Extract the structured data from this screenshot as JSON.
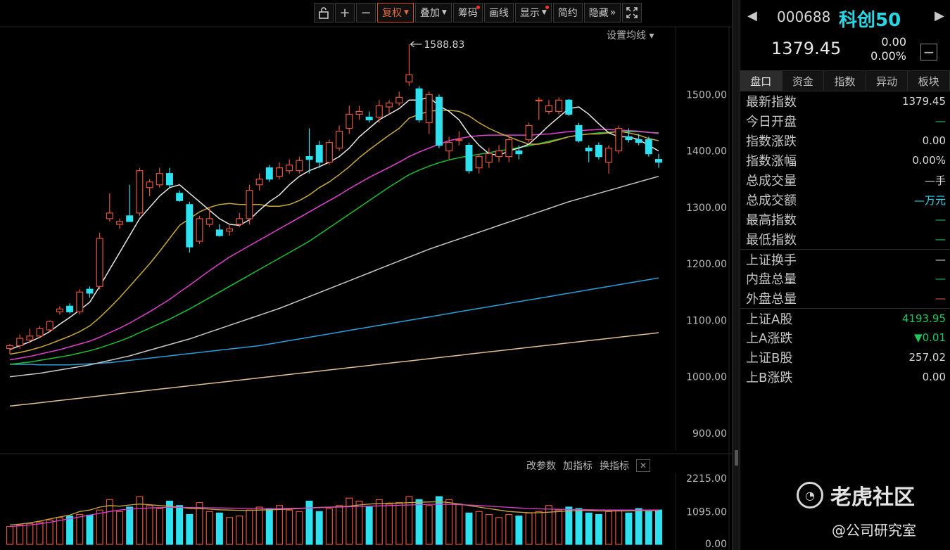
{
  "toolbar": {
    "lock_icon": "lock-icon",
    "zoom_in": "+",
    "zoom_out": "−",
    "items": [
      {
        "label": "复权",
        "dropdown": true,
        "dot": false,
        "active": true
      },
      {
        "label": "叠加",
        "dropdown": true,
        "dot": false,
        "active": false
      },
      {
        "label": "筹码",
        "dropdown": false,
        "dot": true,
        "active": false
      },
      {
        "label": "画线",
        "dropdown": false,
        "dot": false,
        "active": false
      },
      {
        "label": "显示",
        "dropdown": true,
        "dot": true,
        "active": false
      },
      {
        "label": "简约",
        "dropdown": false,
        "dot": false,
        "active": false
      },
      {
        "label": "隐藏",
        "dropdown": false,
        "dot": false,
        "active": false,
        "suffix": "»"
      }
    ],
    "fullscreen_icon": "fullscreen-icon"
  },
  "ma_setting_label": "设置均线 ▾",
  "price_axis": [
    "1500.00",
    "1400.00",
    "1300.00",
    "1200.00",
    "1100.00",
    "1000.00",
    "900.00"
  ],
  "volume_axis": [
    "2215.00",
    "1095.00",
    "0.00"
  ],
  "indicator_controls": [
    "改参数",
    "加指标",
    "换指标"
  ],
  "chart_data": {
    "type": "candlestick",
    "peak_label": "1588.83",
    "y_range": [
      870,
      1620
    ],
    "colors": {
      "up": "#e0553a",
      "down": "#2fe0ef",
      "ma5": "#e8e8e8",
      "ma10": "#c8a83c",
      "ma20": "#e040d0",
      "ma30": "#18c030",
      "ma60": "#c8c8c8",
      "ma120": "#2a9ed8",
      "ma250": "#e0c090"
    },
    "candles": [
      {
        "o": 1050,
        "h": 1058,
        "l": 1040,
        "c": 1055
      },
      {
        "o": 1055,
        "h": 1075,
        "l": 1050,
        "c": 1068
      },
      {
        "o": 1065,
        "h": 1085,
        "l": 1060,
        "c": 1072
      },
      {
        "o": 1072,
        "h": 1090,
        "l": 1068,
        "c": 1085
      },
      {
        "o": 1083,
        "h": 1100,
        "l": 1080,
        "c": 1098
      },
      {
        "o": 1115,
        "h": 1125,
        "l": 1110,
        "c": 1120
      },
      {
        "o": 1125,
        "h": 1130,
        "l": 1112,
        "c": 1115
      },
      {
        "o": 1115,
        "h": 1155,
        "l": 1110,
        "c": 1150
      },
      {
        "o": 1155,
        "h": 1160,
        "l": 1140,
        "c": 1148
      },
      {
        "o": 1160,
        "h": 1255,
        "l": 1155,
        "c": 1245
      },
      {
        "o": 1280,
        "h": 1325,
        "l": 1275,
        "c": 1290
      },
      {
        "o": 1270,
        "h": 1280,
        "l": 1262,
        "c": 1275
      },
      {
        "o": 1285,
        "h": 1340,
        "l": 1278,
        "c": 1275
      },
      {
        "o": 1290,
        "h": 1370,
        "l": 1285,
        "c": 1365
      },
      {
        "o": 1335,
        "h": 1350,
        "l": 1320,
        "c": 1345
      },
      {
        "o": 1340,
        "h": 1370,
        "l": 1335,
        "c": 1360
      },
      {
        "o": 1360,
        "h": 1370,
        "l": 1335,
        "c": 1340
      },
      {
        "o": 1325,
        "h": 1330,
        "l": 1310,
        "c": 1312
      },
      {
        "o": 1305,
        "h": 1310,
        "l": 1220,
        "c": 1230
      },
      {
        "o": 1240,
        "h": 1285,
        "l": 1235,
        "c": 1280
      },
      {
        "o": 1270,
        "h": 1300,
        "l": 1265,
        "c": 1280
      },
      {
        "o": 1260,
        "h": 1270,
        "l": 1248,
        "c": 1250
      },
      {
        "o": 1258,
        "h": 1270,
        "l": 1250,
        "c": 1262
      },
      {
        "o": 1270,
        "h": 1290,
        "l": 1265,
        "c": 1280
      },
      {
        "o": 1280,
        "h": 1340,
        "l": 1270,
        "c": 1330
      },
      {
        "o": 1340,
        "h": 1360,
        "l": 1330,
        "c": 1350
      },
      {
        "o": 1370,
        "h": 1375,
        "l": 1345,
        "c": 1350
      },
      {
        "o": 1355,
        "h": 1380,
        "l": 1350,
        "c": 1370
      },
      {
        "o": 1365,
        "h": 1385,
        "l": 1360,
        "c": 1375
      },
      {
        "o": 1365,
        "h": 1390,
        "l": 1360,
        "c": 1383
      },
      {
        "o": 1390,
        "h": 1440,
        "l": 1360,
        "c": 1385
      },
      {
        "o": 1410,
        "h": 1418,
        "l": 1370,
        "c": 1380
      },
      {
        "o": 1380,
        "h": 1420,
        "l": 1375,
        "c": 1415
      },
      {
        "o": 1405,
        "h": 1445,
        "l": 1400,
        "c": 1435
      },
      {
        "o": 1440,
        "h": 1480,
        "l": 1430,
        "c": 1465
      },
      {
        "o": 1465,
        "h": 1480,
        "l": 1455,
        "c": 1470
      },
      {
        "o": 1460,
        "h": 1470,
        "l": 1450,
        "c": 1455
      },
      {
        "o": 1460,
        "h": 1490,
        "l": 1450,
        "c": 1480
      },
      {
        "o": 1478,
        "h": 1490,
        "l": 1465,
        "c": 1485
      },
      {
        "o": 1485,
        "h": 1505,
        "l": 1480,
        "c": 1495
      },
      {
        "o": 1522,
        "h": 1589,
        "l": 1515,
        "c": 1535
      },
      {
        "o": 1510,
        "h": 1515,
        "l": 1450,
        "c": 1455
      },
      {
        "o": 1450,
        "h": 1505,
        "l": 1430,
        "c": 1500
      },
      {
        "o": 1495,
        "h": 1500,
        "l": 1405,
        "c": 1410
      },
      {
        "o": 1400,
        "h": 1425,
        "l": 1385,
        "c": 1415
      },
      {
        "o": 1420,
        "h": 1435,
        "l": 1410,
        "c": 1420
      },
      {
        "o": 1410,
        "h": 1415,
        "l": 1360,
        "c": 1365
      },
      {
        "o": 1370,
        "h": 1395,
        "l": 1360,
        "c": 1390
      },
      {
        "o": 1380,
        "h": 1405,
        "l": 1370,
        "c": 1395
      },
      {
        "o": 1390,
        "h": 1410,
        "l": 1380,
        "c": 1400
      },
      {
        "o": 1390,
        "h": 1425,
        "l": 1380,
        "c": 1420
      },
      {
        "o": 1400,
        "h": 1410,
        "l": 1385,
        "c": 1395
      },
      {
        "o": 1420,
        "h": 1450,
        "l": 1415,
        "c": 1445
      },
      {
        "o": 1490,
        "h": 1495,
        "l": 1455,
        "c": 1490
      },
      {
        "o": 1470,
        "h": 1490,
        "l": 1465,
        "c": 1480
      },
      {
        "o": 1470,
        "h": 1495,
        "l": 1465,
        "c": 1490
      },
      {
        "o": 1490,
        "h": 1492,
        "l": 1462,
        "c": 1465
      },
      {
        "o": 1445,
        "h": 1450,
        "l": 1415,
        "c": 1418
      },
      {
        "o": 1405,
        "h": 1410,
        "l": 1380,
        "c": 1400
      },
      {
        "o": 1410,
        "h": 1415,
        "l": 1385,
        "c": 1390
      },
      {
        "o": 1380,
        "h": 1410,
        "l": 1360,
        "c": 1405
      },
      {
        "o": 1400,
        "h": 1445,
        "l": 1395,
        "c": 1440
      },
      {
        "o": 1425,
        "h": 1440,
        "l": 1415,
        "c": 1420
      },
      {
        "o": 1420,
        "h": 1430,
        "l": 1410,
        "c": 1415
      },
      {
        "o": 1420,
        "h": 1425,
        "l": 1390,
        "c": 1395
      },
      {
        "o": 1385,
        "h": 1395,
        "l": 1370,
        "c": 1380
      }
    ],
    "ma5": [
      1048,
      1055,
      1062,
      1070,
      1080,
      1093,
      1105,
      1118,
      1132,
      1160,
      1190,
      1220,
      1250,
      1280,
      1300,
      1320,
      1335,
      1340,
      1325,
      1310,
      1295,
      1280,
      1270,
      1268,
      1278,
      1295,
      1310,
      1322,
      1340,
      1355,
      1365,
      1372,
      1380,
      1390,
      1405,
      1425,
      1440,
      1455,
      1465,
      1475,
      1490,
      1490,
      1495,
      1480,
      1470,
      1455,
      1430,
      1410,
      1395,
      1392,
      1400,
      1405,
      1412,
      1428,
      1445,
      1460,
      1475,
      1478,
      1465,
      1448,
      1432,
      1425,
      1425,
      1420,
      1410,
      1400
    ],
    "ma10": [
      1040,
      1043,
      1047,
      1052,
      1058,
      1065,
      1072,
      1080,
      1090,
      1105,
      1122,
      1140,
      1160,
      1180,
      1200,
      1222,
      1245,
      1268,
      1280,
      1292,
      1300,
      1305,
      1307,
      1305,
      1305,
      1305,
      1302,
      1302,
      1305,
      1312,
      1322,
      1335,
      1345,
      1358,
      1372,
      1388,
      1402,
      1415,
      1428,
      1440,
      1458,
      1465,
      1470,
      1472,
      1472,
      1470,
      1462,
      1450,
      1440,
      1432,
      1425,
      1418,
      1412,
      1412,
      1415,
      1420,
      1425,
      1428,
      1430,
      1430,
      1432,
      1435,
      1432,
      1428,
      1422,
      1418
    ],
    "ma20": [
      1030,
      1033,
      1036,
      1040,
      1044,
      1048,
      1053,
      1058,
      1063,
      1070,
      1078,
      1086,
      1095,
      1105,
      1115,
      1126,
      1137,
      1150,
      1162,
      1175,
      1188,
      1200,
      1212,
      1222,
      1232,
      1242,
      1252,
      1262,
      1272,
      1282,
      1292,
      1302,
      1312,
      1322,
      1333,
      1343,
      1353,
      1362,
      1371,
      1380,
      1390,
      1398,
      1405,
      1412,
      1418,
      1422,
      1425,
      1427,
      1428,
      1428,
      1428,
      1428,
      1428,
      1429,
      1430,
      1432,
      1434,
      1436,
      1437,
      1438,
      1438,
      1437,
      1436,
      1435,
      1433,
      1431
    ],
    "ma30": [
      1022,
      1024,
      1026,
      1029,
      1032,
      1035,
      1038,
      1042,
      1046,
      1051,
      1057,
      1063,
      1070,
      1078,
      1086,
      1094,
      1102,
      1111,
      1120,
      1130,
      1140,
      1150,
      1160,
      1170,
      1180,
      1190,
      1200,
      1210,
      1220,
      1230,
      1240,
      1252,
      1264,
      1276,
      1288,
      1300,
      1312,
      1324,
      1336,
      1347,
      1358,
      1366,
      1373,
      1379,
      1384,
      1388,
      1391,
      1394,
      1397,
      1400,
      1403,
      1406,
      1409,
      1413,
      1417,
      1421,
      1425,
      1428,
      1430,
      1432,
      1433,
      1434,
      1434,
      1434,
      1433,
      1432
    ],
    "ma60": [
      1000,
      1002,
      1004,
      1006,
      1009,
      1012,
      1015,
      1018,
      1021,
      1025,
      1029,
      1033,
      1037,
      1042,
      1047,
      1052,
      1057,
      1062,
      1067,
      1073,
      1079,
      1085,
      1091,
      1097,
      1103,
      1109,
      1115,
      1121,
      1128,
      1135,
      1142,
      1149,
      1156,
      1163,
      1170,
      1177,
      1184,
      1191,
      1198,
      1205,
      1212,
      1219,
      1226,
      1232,
      1238,
      1244,
      1250,
      1256,
      1262,
      1268,
      1274,
      1280,
      1286,
      1292,
      1298,
      1304,
      1310,
      1315,
      1320,
      1325,
      1330,
      1335,
      1340,
      1345,
      1350,
      1355
    ],
    "ma120": [
      1022,
      1022,
      1022,
      1021,
      1021,
      1021,
      1021,
      1022,
      1023,
      1024,
      1025,
      1027,
      1029,
      1031,
      1033,
      1035,
      1037,
      1039,
      1041,
      1043,
      1045,
      1047,
      1049,
      1051,
      1053,
      1055,
      1058,
      1061,
      1064,
      1067,
      1070,
      1073,
      1076,
      1079,
      1082,
      1085,
      1088,
      1091,
      1094,
      1097,
      1100,
      1103,
      1106,
      1109,
      1112,
      1115,
      1118,
      1121,
      1124,
      1127,
      1130,
      1133,
      1136,
      1139,
      1142,
      1145,
      1148,
      1151,
      1154,
      1157,
      1160,
      1163,
      1166,
      1169,
      1172,
      1175
    ],
    "ma250": [
      948,
      950,
      952,
      954,
      956,
      958,
      960,
      962,
      964,
      966,
      968,
      970,
      972,
      974,
      976,
      978,
      980,
      982,
      984,
      986,
      988,
      990,
      992,
      994,
      996,
      998,
      1000,
      1002,
      1004,
      1006,
      1008,
      1010,
      1012,
      1014,
      1016,
      1018,
      1020,
      1022,
      1024,
      1026,
      1028,
      1030,
      1032,
      1034,
      1036,
      1038,
      1040,
      1042,
      1044,
      1046,
      1048,
      1050,
      1052,
      1054,
      1056,
      1058,
      1060,
      1062,
      1064,
      1066,
      1068,
      1070,
      1072,
      1074,
      1076,
      1078
    ],
    "volume": {
      "y_range": [
        0,
        2215
      ],
      "values": [
        600,
        650,
        700,
        750,
        820,
        900,
        950,
        1000,
        980,
        1150,
        1500,
        1100,
        1250,
        1600,
        1300,
        1200,
        1450,
        1300,
        1000,
        1400,
        1100,
        1050,
        900,
        950,
        1150,
        1250,
        1200,
        1300,
        1150,
        1100,
        1450,
        1100,
        1200,
        1300,
        1550,
        1450,
        1250,
        1500,
        1350,
        1400,
        1600,
        1500,
        1300,
        1600,
        1500,
        1350,
        1050,
        1100,
        1000,
        900,
        1000,
        950,
        1050,
        1100,
        1300,
        1150,
        1250,
        1200,
        1050,
        1000,
        1100,
        1150,
        1050,
        1200,
        1100,
        1150
      ],
      "ma_a": [
        650,
        680,
        720,
        780,
        850,
        920,
        980,
        1100,
        1150,
        1250,
        1300,
        1280,
        1320,
        1350,
        1330,
        1300,
        1280,
        1250,
        1200,
        1200,
        1180,
        1160,
        1150,
        1140,
        1140,
        1150,
        1160,
        1170,
        1180,
        1200,
        1220,
        1240,
        1250,
        1260,
        1280,
        1320,
        1350,
        1370,
        1380,
        1380,
        1400,
        1410,
        1420,
        1430,
        1400,
        1350,
        1300,
        1250,
        1200,
        1150,
        1100,
        1080,
        1060,
        1060,
        1080,
        1100,
        1120,
        1130,
        1130,
        1120,
        1120,
        1120,
        1120,
        1130,
        1130,
        1130
      ],
      "ma_b": [
        600,
        620,
        650,
        690,
        740,
        800,
        860,
        920,
        980,
        1040,
        1100,
        1150,
        1180,
        1200,
        1220,
        1230,
        1240,
        1240,
        1235,
        1230,
        1225,
        1220,
        1215,
        1210,
        1205,
        1200,
        1200,
        1200,
        1205,
        1210,
        1220,
        1230,
        1240,
        1250,
        1260,
        1270,
        1280,
        1290,
        1300,
        1310,
        1320,
        1330,
        1340,
        1345,
        1340,
        1330,
        1320,
        1300,
        1280,
        1260,
        1240,
        1220,
        1200,
        1190,
        1180,
        1175,
        1170,
        1165,
        1160,
        1155,
        1150,
        1150,
        1150,
        1150,
        1150,
        1150
      ]
    }
  },
  "sidebar": {
    "code": "000688",
    "name": "科创50",
    "price": "1379.45",
    "change": "0.00",
    "change_pct": "0.00%",
    "tabs": [
      "盘口",
      "资金",
      "指数",
      "异动",
      "板块"
    ],
    "quote_rows": [
      {
        "label": "最新指数",
        "value": "1379.45",
        "color": "normal",
        "sep": false
      },
      {
        "label": "今日开盘",
        "value": "—",
        "color": "green",
        "sep": false
      },
      {
        "label": "指数涨跌",
        "value": "0.00",
        "color": "normal",
        "sep": false
      },
      {
        "label": "指数涨幅",
        "value": "0.00%",
        "color": "normal",
        "sep": false
      },
      {
        "label": "总成交量",
        "value": "—手",
        "color": "normal",
        "sep": false
      },
      {
        "label": "总成交额",
        "value": "—万元",
        "color": "cyan",
        "sep": false
      },
      {
        "label": "最高指数",
        "value": "—",
        "color": "green",
        "sep": false
      },
      {
        "label": "最低指数",
        "value": "—",
        "color": "green",
        "sep": false
      },
      {
        "label": "上证换手",
        "value": "—",
        "color": "normal",
        "sep": true
      },
      {
        "label": "内盘总量",
        "value": "—",
        "color": "green",
        "sep": false
      },
      {
        "label": "外盘总量",
        "value": "—",
        "color": "red",
        "sep": false
      },
      {
        "label": "上证A股",
        "value": "4193.95",
        "color": "green",
        "sep": true
      },
      {
        "label": "上A涨跌",
        "value": "▼0.01",
        "color": "green",
        "sep": false
      },
      {
        "label": "上证B股",
        "value": "257.02",
        "color": "normal",
        "sep": false
      },
      {
        "label": "上B涨跌",
        "value": "0.00",
        "color": "normal",
        "sep": false
      }
    ]
  },
  "watermark": {
    "brand": "老虎社区",
    "credit": "@公司研究室"
  }
}
